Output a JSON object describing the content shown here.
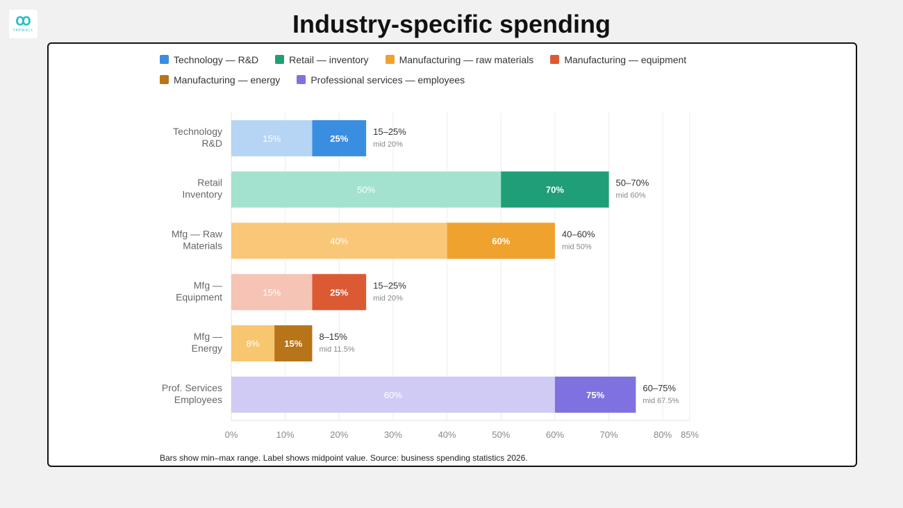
{
  "logo": {
    "text": "TAPWELL"
  },
  "title": "Industry-specific spending",
  "legend": [
    {
      "label": "Technology — R&D",
      "color": "#3a8ee0"
    },
    {
      "label": "Retail — inventory",
      "color": "#1f9e77"
    },
    {
      "label": "Manufacturing — raw materials",
      "color": "#f0a22e"
    },
    {
      "label": "Manufacturing — equipment",
      "color": "#dc5a33"
    },
    {
      "label": "Manufacturing — energy",
      "color": "#b87418"
    },
    {
      "label": "Professional services — employees",
      "color": "#7f72e0"
    }
  ],
  "footnote": "Bars show min–max range. Label shows midpoint value. Source: business spending statistics 2026.",
  "chart_data": {
    "type": "bar",
    "orientation": "horizontal-range",
    "xlim": [
      0,
      85
    ],
    "xticks": [
      "0%",
      "10%",
      "20%",
      "30%",
      "40%",
      "50%",
      "60%",
      "70%",
      "80%",
      "85%"
    ],
    "xtick_values": [
      0,
      10,
      20,
      30,
      40,
      50,
      60,
      70,
      80,
      85
    ],
    "grid": true,
    "legend_position": "top",
    "categories": [
      [
        "Technology",
        "R&D"
      ],
      [
        "Retail",
        "Inventory"
      ],
      [
        "Mfg — Raw",
        "Materials"
      ],
      [
        "Mfg —",
        "Equipment"
      ],
      [
        "Mfg —",
        "Energy"
      ],
      [
        "Prof. Services",
        "Employees"
      ]
    ],
    "series": [
      {
        "name": "Technology — R&D",
        "min": 15,
        "max": 25,
        "mid": 20,
        "min_label": "15%",
        "max_label": "25%",
        "range_label": "15–25%",
        "mid_label": "mid 20%",
        "light": "#b6d4f3",
        "dark": "#3a8ee0"
      },
      {
        "name": "Retail — inventory",
        "min": 50,
        "max": 70,
        "mid": 60,
        "min_label": "50%",
        "max_label": "70%",
        "range_label": "50–70%",
        "mid_label": "mid 60%",
        "light": "#a3e2cf",
        "dark": "#1f9e77"
      },
      {
        "name": "Manufacturing — raw materials",
        "min": 40,
        "max": 60,
        "mid": 50,
        "min_label": "40%",
        "max_label": "60%",
        "range_label": "40–60%",
        "mid_label": "mid 50%",
        "light": "#f8c878",
        "dark": "#f0a22e"
      },
      {
        "name": "Manufacturing — equipment",
        "min": 15,
        "max": 25,
        "mid": 20,
        "min_label": "15%",
        "max_label": "25%",
        "range_label": "15–25%",
        "mid_label": "mid 20%",
        "light": "#f5c4b4",
        "dark": "#dc5a33"
      },
      {
        "name": "Manufacturing — energy",
        "min": 8,
        "max": 15,
        "mid": 11.5,
        "min_label": "8%",
        "max_label": "15%",
        "range_label": "8–15%",
        "mid_label": "mid 11.5%",
        "light": "#f8c66e",
        "dark": "#b87418"
      },
      {
        "name": "Professional services — employees",
        "min": 60,
        "max": 75,
        "mid": 67.5,
        "min_label": "60%",
        "max_label": "75%",
        "range_label": "60–75%",
        "mid_label": "mid 67.5%",
        "light": "#d0cbf5",
        "dark": "#7f72e0"
      }
    ]
  }
}
